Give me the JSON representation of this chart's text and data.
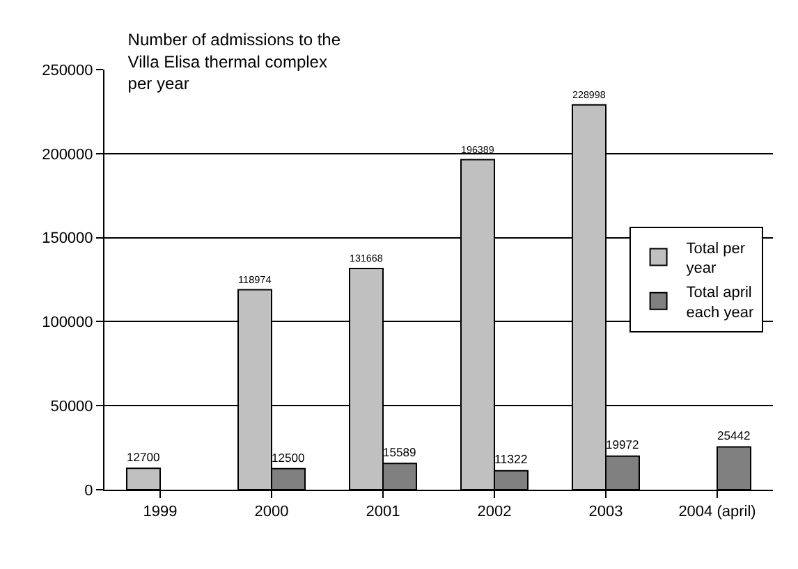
{
  "chart_data": {
    "type": "bar",
    "title": "Number of admissions to the Villa Elisa thermal complex per year",
    "categories": [
      "1999",
      "2000",
      "2001",
      "2002",
      "2003",
      "2004 (april)"
    ],
    "series": [
      {
        "name": "Total per year",
        "color": "#c0c0c0",
        "values": [
          12700,
          118974,
          131668,
          196389,
          228998,
          null
        ]
      },
      {
        "name": "Total april each year",
        "color": "#808080",
        "values": [
          null,
          12500,
          15589,
          11322,
          19972,
          25442
        ]
      }
    ],
    "ylim": [
      0,
      250000
    ],
    "yticks": [
      0,
      50000,
      100000,
      150000,
      200000,
      250000
    ],
    "grid": "y",
    "legend": "right",
    "data_labels": true
  }
}
